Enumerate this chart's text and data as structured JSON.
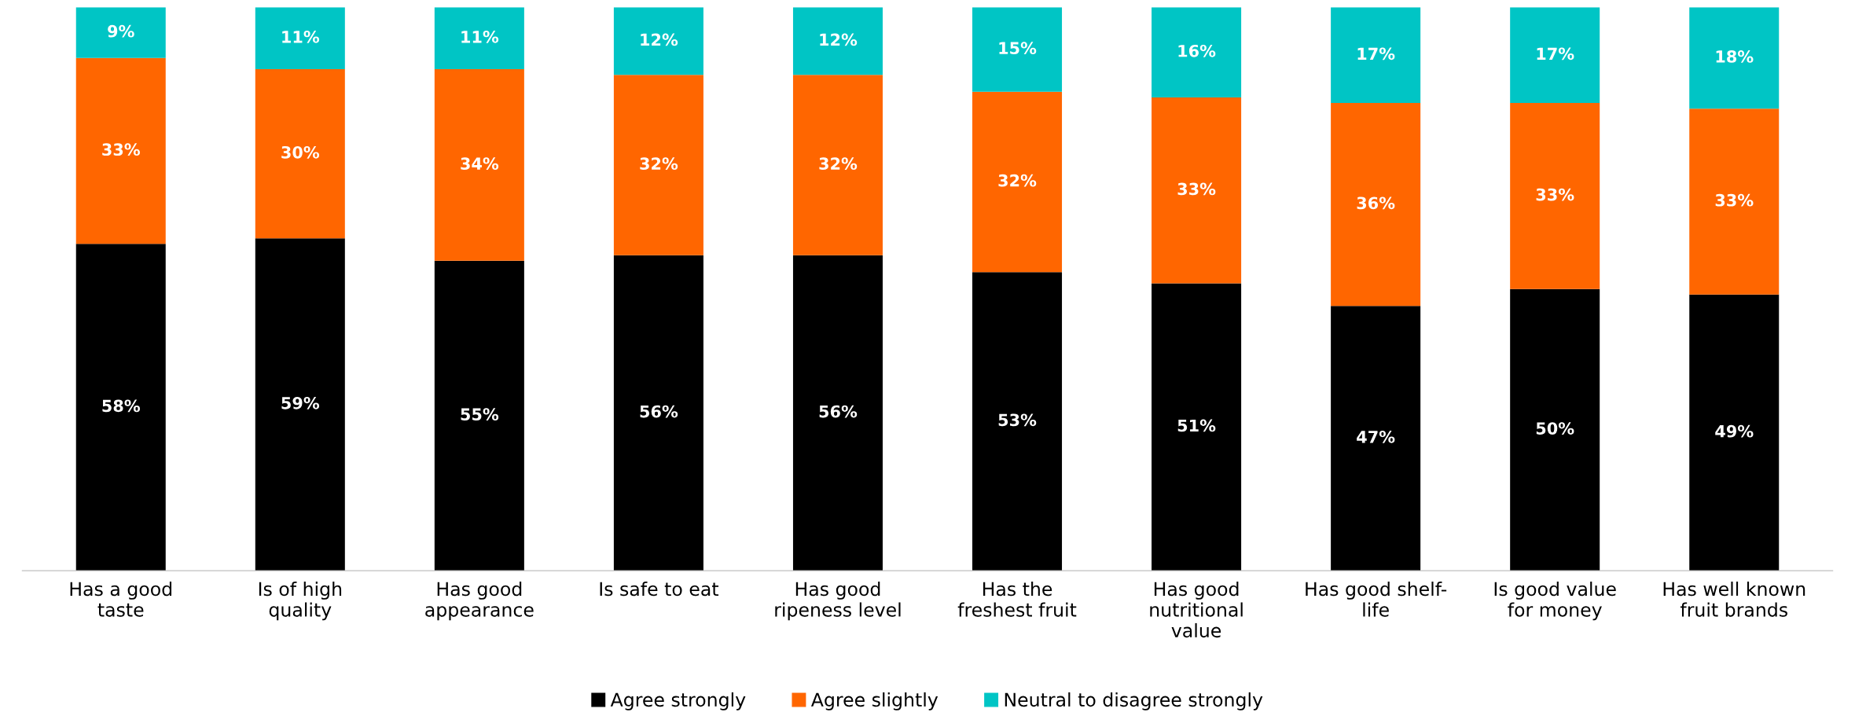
{
  "chart_data": {
    "type": "bar",
    "stacked": true,
    "tick_labels": "x",
    "grid": false,
    "legend": "bottom",
    "categories": [
      "Has a good\ntaste",
      "Is of high\nquality",
      "Has good\nappearance",
      "Is safe to eat",
      "Has good\nripeness level",
      "Has the\nfreshest fruit",
      "Has good\nnutritional\nvalue",
      "Has good shelf-\nlife",
      "Is good value\nfor money",
      "Has well known\nfruit brands"
    ],
    "series": [
      {
        "name": "Agree strongly",
        "color": "#000000",
        "values": [
          58,
          59,
          55,
          56,
          56,
          53,
          51,
          47,
          50,
          49
        ],
        "value_labels": [
          "58%",
          "59%",
          "55%",
          "56%",
          "56%",
          "53%",
          "51%",
          "47%",
          "50%",
          "49%"
        ]
      },
      {
        "name": "Agree slightly",
        "color": "#ff6600",
        "values": [
          33,
          30,
          34,
          32,
          32,
          32,
          33,
          36,
          33,
          33
        ],
        "value_labels": [
          "33%",
          "30%",
          "34%",
          "32%",
          "32%",
          "32%",
          "33%",
          "36%",
          "33%",
          "33%"
        ]
      },
      {
        "name": "Neutral to disagree strongly",
        "color": "#00c5c5",
        "values": [
          9,
          11,
          11,
          12,
          12,
          15,
          16,
          17,
          17,
          18
        ],
        "value_labels": [
          "9%",
          "11%",
          "11%",
          "12%",
          "12%",
          "15%",
          "16%",
          "17%",
          "17%",
          "18%"
        ]
      }
    ]
  }
}
